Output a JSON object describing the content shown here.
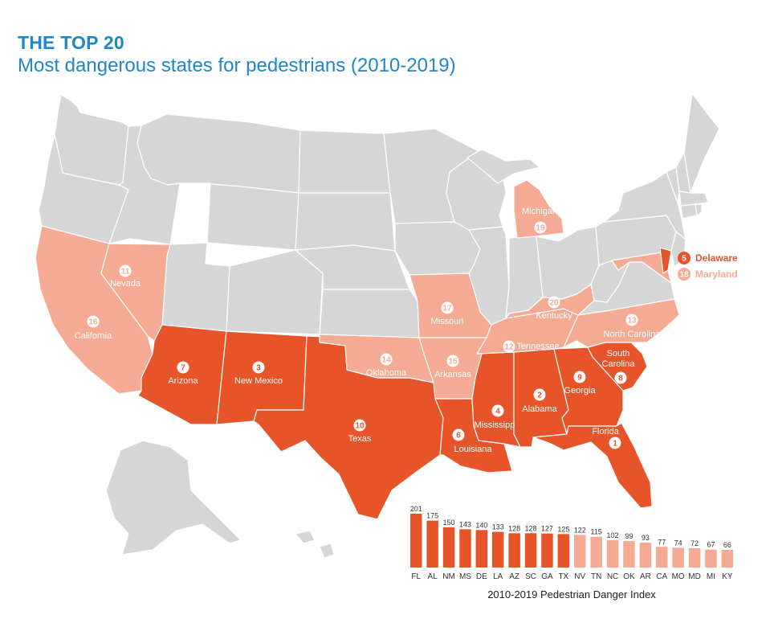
{
  "header": {
    "title": "THE TOP 20",
    "subtitle": "Most dangerous states for pedestrians (2010-2019)"
  },
  "colors": {
    "top10": "#e8542a",
    "next10": "#f5aa94",
    "other": "#d6d6d6",
    "border": "#ffffff",
    "title": "#1e88c7"
  },
  "map_labels": [
    {
      "key": "florida",
      "rank": "1",
      "name": "Florida",
      "tier": "top10"
    },
    {
      "key": "alabama",
      "rank": "2",
      "name": "Alabama",
      "tier": "top10"
    },
    {
      "key": "new-mexico",
      "rank": "3",
      "name": "New Mexico",
      "tier": "top10"
    },
    {
      "key": "mississippi",
      "rank": "4",
      "name": "Mississipp",
      "tier": "top10"
    },
    {
      "key": "delaware",
      "rank": "5",
      "name": "Delaware",
      "tier": "top10"
    },
    {
      "key": "louisiana",
      "rank": "6",
      "name": "Louisiana",
      "tier": "top10"
    },
    {
      "key": "arizona",
      "rank": "7",
      "name": "Arizona",
      "tier": "top10"
    },
    {
      "key": "south-carolina",
      "rank": "8",
      "name": "South Carolina",
      "tier": "top10"
    },
    {
      "key": "georgia",
      "rank": "9",
      "name": "Georgia",
      "tier": "top10"
    },
    {
      "key": "texas",
      "rank": "10",
      "name": "Texas",
      "tier": "top10"
    },
    {
      "key": "nevada",
      "rank": "11",
      "name": "Nevada",
      "tier": "next10"
    },
    {
      "key": "tennessee",
      "rank": "12",
      "name": "Tennessee",
      "tier": "next10"
    },
    {
      "key": "north-carolina",
      "rank": "13",
      "name": "North Carolina",
      "tier": "next10"
    },
    {
      "key": "oklahoma",
      "rank": "14",
      "name": "Oklahoma",
      "tier": "next10"
    },
    {
      "key": "arkansas",
      "rank": "15",
      "name": "Arkansas",
      "tier": "next10"
    },
    {
      "key": "california",
      "rank": "16",
      "name": "California",
      "tier": "next10"
    },
    {
      "key": "missouri",
      "rank": "17",
      "name": "Missouri",
      "tier": "next10"
    },
    {
      "key": "maryland",
      "rank": "18",
      "name": "Maryland",
      "tier": "next10"
    },
    {
      "key": "michigan",
      "rank": "19",
      "name": "Michigan",
      "tier": "next10"
    },
    {
      "key": "kentucky",
      "rank": "20",
      "name": "Kentucky",
      "tier": "next10"
    }
  ],
  "chart_data": {
    "type": "bar",
    "title": "2010-2019 Pedestrian Danger Index",
    "categories": [
      "FL",
      "AL",
      "NM",
      "MS",
      "DE",
      "LA",
      "AZ",
      "SC",
      "GA",
      "TX",
      "NV",
      "TN",
      "NC",
      "OK",
      "AR",
      "CA",
      "MO",
      "MD",
      "MI",
      "KY"
    ],
    "values": [
      201,
      175,
      150,
      143,
      140,
      133,
      128,
      128,
      127,
      125,
      122,
      115,
      102,
      99,
      93,
      77,
      74,
      72,
      67,
      66
    ],
    "tiers": [
      "top10",
      "top10",
      "top10",
      "top10",
      "top10",
      "top10",
      "top10",
      "top10",
      "top10",
      "top10",
      "next10",
      "next10",
      "next10",
      "next10",
      "next10",
      "next10",
      "next10",
      "next10",
      "next10",
      "next10"
    ],
    "ylim": [
      0,
      201
    ],
    "grid": false,
    "legend": "none"
  }
}
